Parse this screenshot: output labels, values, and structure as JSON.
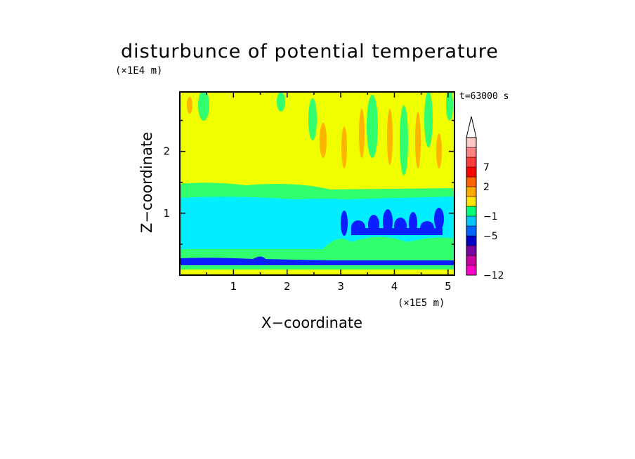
{
  "chart_data": {
    "type": "heatmap",
    "title": "disturbunce of potential temperature",
    "xlabel": "X−coordinate",
    "ylabel": "Z−coordinate",
    "x_unit": "(×1E5 m)",
    "y_unit": "(×1E4 m)",
    "timestamp": "t=63000 s",
    "xlim": [
      0,
      5.12
    ],
    "ylim": [
      0,
      2.96
    ],
    "x_ticks": [
      "1",
      "2",
      "3",
      "4",
      "5"
    ],
    "y_ticks": [
      "1",
      "2"
    ],
    "colorbar": {
      "colors": [
        "#ff00c8",
        "#c8009f",
        "#78009f",
        "#0000c8",
        "#0064ff",
        "#00c8ff",
        "#00ff78",
        "#ffe600",
        "#ffaa00",
        "#ff6400",
        "#ff0000",
        "#ff3c3c",
        "#ff8282",
        "#ffc8c8"
      ],
      "labels": [
        "−12",
        "−5",
        "−1",
        "2",
        "7"
      ],
      "extend_top": true
    },
    "regions": [
      {
        "level": "-1",
        "description": "band",
        "z_range": [
          0.12,
          1.25
        ]
      },
      {
        "level": "0",
        "description": "band",
        "z_range": [
          1.25,
          1.45
        ]
      },
      {
        "level": "1",
        "description": "band",
        "z_range": [
          1.45,
          2.96
        ]
      },
      {
        "level": "-5",
        "description": "thin layer",
        "z_range": [
          0.18,
          0.24
        ]
      }
    ]
  }
}
